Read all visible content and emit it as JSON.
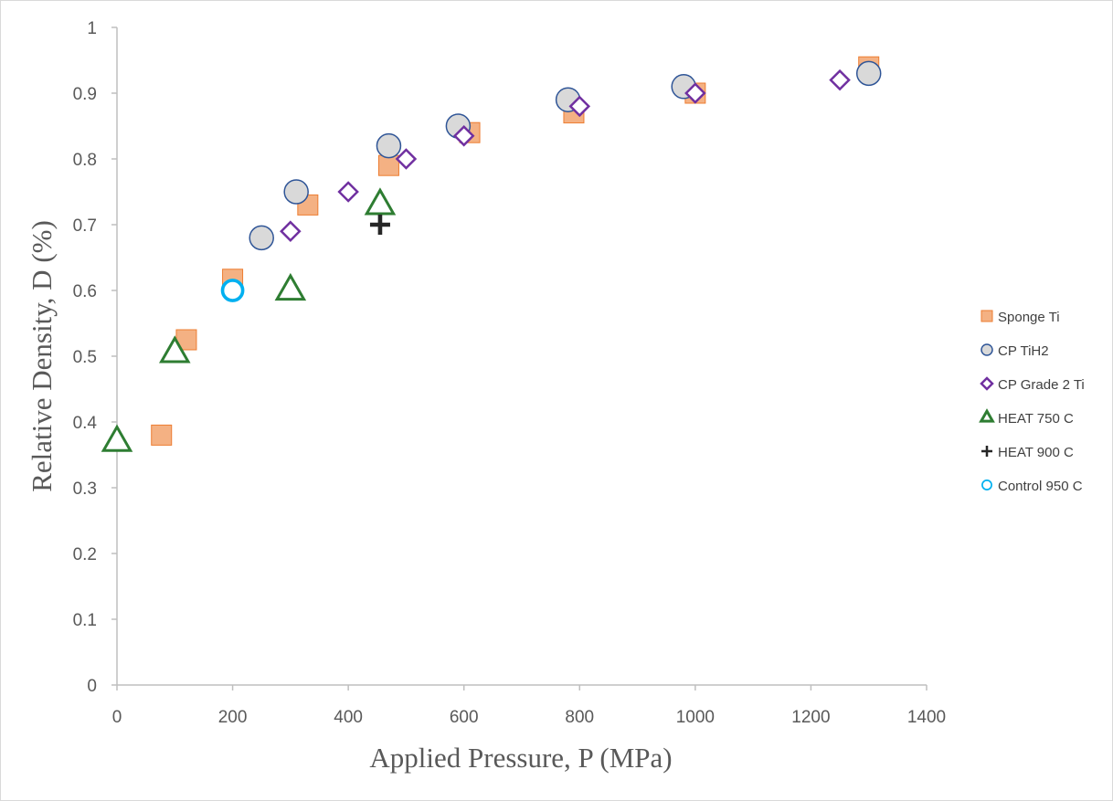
{
  "chart_data": {
    "type": "scatter",
    "title": "",
    "xlabel": "Applied Pressure, P (MPa)",
    "ylabel": "Relative Density, D (%)",
    "xlim": [
      0,
      1400
    ],
    "ylim": [
      0,
      1
    ],
    "x_ticks": [
      "0",
      "200",
      "400",
      "600",
      "800",
      "1000",
      "1200",
      "1400"
    ],
    "y_ticks": [
      "0",
      "0.1",
      "0.2",
      "0.3",
      "0.4",
      "0.5",
      "0.6",
      "0.7",
      "0.8",
      "0.9",
      "1"
    ],
    "grid": false,
    "legend_position": "right",
    "series": [
      {
        "name": "Sponge Ti",
        "marker": "square",
        "color": "#F4B183",
        "stroke": "#ED7D31",
        "points": [
          [
            77,
            0.38
          ],
          [
            120,
            0.525
          ],
          [
            200,
            0.617
          ],
          [
            330,
            0.73
          ],
          [
            470,
            0.79
          ],
          [
            610,
            0.84
          ],
          [
            790,
            0.87
          ],
          [
            1000,
            0.9
          ],
          [
            1300,
            0.94
          ]
        ]
      },
      {
        "name": "CP TiH2",
        "marker": "circle",
        "color": "#D9D9D9",
        "stroke": "#2F5597",
        "points": [
          [
            250,
            0.68
          ],
          [
            310,
            0.75
          ],
          [
            470,
            0.82
          ],
          [
            590,
            0.85
          ],
          [
            780,
            0.89
          ],
          [
            980,
            0.91
          ],
          [
            1300,
            0.93
          ]
        ]
      },
      {
        "name": "CP Grade 2 Ti",
        "marker": "diamond",
        "color": "#FFFFFF",
        "stroke": "#7030A0",
        "points": [
          [
            300,
            0.69
          ],
          [
            400,
            0.75
          ],
          [
            500,
            0.8
          ],
          [
            600,
            0.835
          ],
          [
            800,
            0.88
          ],
          [
            1000,
            0.9
          ],
          [
            1250,
            0.92
          ]
        ]
      },
      {
        "name": "HEAT 750 C",
        "marker": "triangle",
        "color": "#FFFFFF",
        "stroke": "#2E7D32",
        "points": [
          [
            0,
            0.37
          ],
          [
            100,
            0.505
          ],
          [
            300,
            0.6
          ],
          [
            455,
            0.73
          ]
        ]
      },
      {
        "name": "HEAT 900 C",
        "marker": "plus",
        "color": "#262626",
        "stroke": "#262626",
        "points": [
          [
            455,
            0.7
          ]
        ]
      },
      {
        "name": "Control 950 C",
        "marker": "ring",
        "color": "#FFFFFF",
        "stroke": "#00B0F0",
        "points": [
          [
            200,
            0.6
          ]
        ]
      }
    ]
  }
}
